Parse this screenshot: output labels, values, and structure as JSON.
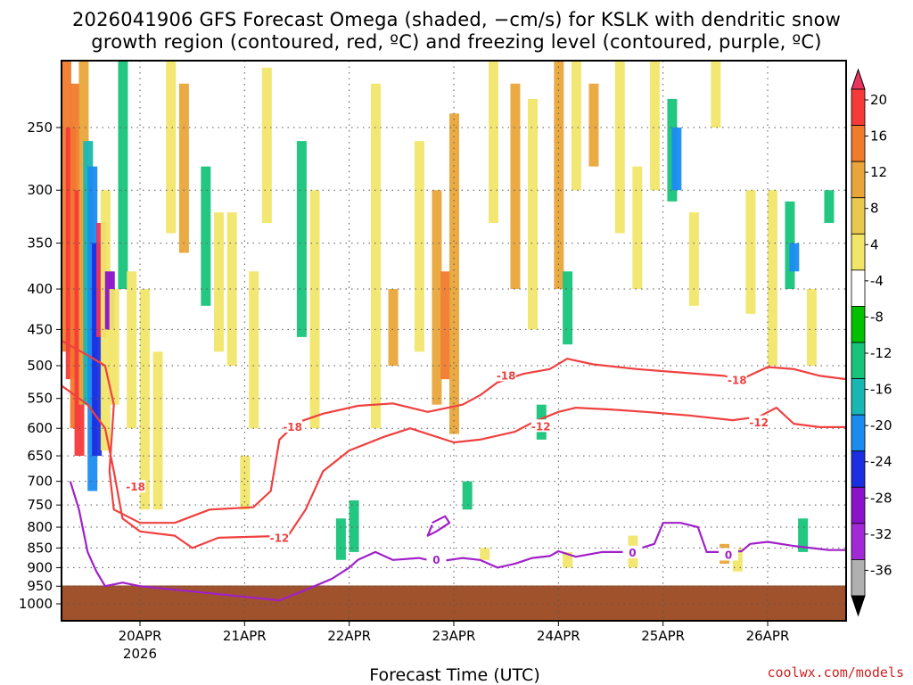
{
  "title_line1": "2026041906 GFS Forecast Omega (shaded, −cm/s) for KSLK with dendritic snow",
  "title_line2": "growth region (contoured, red, ºC) and freezing level (contoured, purple, ºC)",
  "credit": "coolwx.com/models",
  "chart_data": {
    "type": "heatmap",
    "title": "2026041906 GFS Forecast Omega (shaded, −cm/s) for KSLK with dendritic snow growth region (contoured, red, ºC) and freezing level (contoured, purple, ºC)",
    "xlabel": "Forecast Time (UTC)",
    "ylabel": "",
    "y_scale": "log-pressure (hPa, inverted)",
    "y_ticks": [
      250,
      300,
      350,
      400,
      450,
      500,
      550,
      600,
      650,
      700,
      750,
      800,
      850,
      900,
      950,
      1000
    ],
    "y_range_hpa": [
      200,
      1050
    ],
    "x_ticks": [
      {
        "label": "20APR",
        "sublabel": "2026",
        "hour": 18
      },
      {
        "label": "21APR",
        "sublabel": "",
        "hour": 42
      },
      {
        "label": "22APR",
        "sublabel": "",
        "hour": 66
      },
      {
        "label": "23APR",
        "sublabel": "",
        "hour": 90
      },
      {
        "label": "24APR",
        "sublabel": "",
        "hour": 114
      },
      {
        "label": "25APR",
        "sublabel": "",
        "hour": 138
      },
      {
        "label": "26APR",
        "sublabel": "",
        "hour": 162
      }
    ],
    "x_range_hours": [
      0,
      180
    ],
    "grid": true,
    "colorbar": {
      "labels": [
        "20",
        "16",
        "12",
        "8",
        "4",
        "-4",
        "-8",
        "-12",
        "-16",
        "-20",
        "-24",
        "-28",
        "-32",
        "-36"
      ],
      "colors": [
        "#e8335f",
        "#f53a3a",
        "#f07b2c",
        "#e9a53a",
        "#e8c84e",
        "#f1e66a",
        "#ffffff",
        "#00c000",
        "#18c47a",
        "#19b7b3",
        "#1a8cf0",
        "#1b2ee0",
        "#8a12c9",
        "#a12ad6",
        "#b0b0b0",
        "#000000"
      ]
    },
    "shading_cells": [
      {
        "h": 1,
        "p1": 200,
        "p2": 480,
        "v": 12
      },
      {
        "h": 2,
        "p1": 250,
        "p2": 520,
        "v": 16
      },
      {
        "h": 3,
        "p1": 220,
        "p2": 600,
        "v": 12
      },
      {
        "h": 4,
        "p1": 300,
        "p2": 650,
        "v": 16
      },
      {
        "h": 5,
        "p1": 200,
        "p2": 560,
        "v": 8
      },
      {
        "h": 6,
        "p1": 260,
        "p2": 560,
        "v": -12
      },
      {
        "h": 7,
        "p1": 280,
        "p2": 720,
        "v": -16
      },
      {
        "h": 8,
        "p1": 350,
        "p2": 650,
        "v": -20
      },
      {
        "h": 9,
        "p1": 330,
        "p2": 460,
        "v": 20
      },
      {
        "h": 10,
        "p1": 300,
        "p2": 640,
        "v": 4
      },
      {
        "h": 11,
        "p1": 380,
        "p2": 450,
        "v": -24
      },
      {
        "h": 12,
        "p1": 400,
        "p2": 560,
        "v": 4
      },
      {
        "h": 14,
        "p1": 200,
        "p2": 400,
        "v": -8
      },
      {
        "h": 16,
        "p1": 380,
        "p2": 600,
        "v": 4
      },
      {
        "h": 19,
        "p1": 400,
        "p2": 760,
        "v": 4
      },
      {
        "h": 22,
        "p1": 480,
        "p2": 760,
        "v": 4
      },
      {
        "h": 25,
        "p1": 200,
        "p2": 340,
        "v": 4
      },
      {
        "h": 28,
        "p1": 220,
        "p2": 360,
        "v": 8
      },
      {
        "h": 33,
        "p1": 280,
        "p2": 420,
        "v": -8
      },
      {
        "h": 36,
        "p1": 320,
        "p2": 480,
        "v": 4
      },
      {
        "h": 39,
        "p1": 320,
        "p2": 500,
        "v": 4
      },
      {
        "h": 42,
        "p1": 650,
        "p2": 760,
        "v": 4
      },
      {
        "h": 44,
        "p1": 380,
        "p2": 600,
        "v": 4
      },
      {
        "h": 47,
        "p1": 210,
        "p2": 330,
        "v": 4
      },
      {
        "h": 55,
        "p1": 260,
        "p2": 460,
        "v": -8
      },
      {
        "h": 58,
        "p1": 300,
        "p2": 600,
        "v": 4
      },
      {
        "h": 64,
        "p1": 780,
        "p2": 880,
        "v": -8
      },
      {
        "h": 67,
        "p1": 740,
        "p2": 860,
        "v": -8
      },
      {
        "h": 72,
        "p1": 220,
        "p2": 600,
        "v": 4
      },
      {
        "h": 76,
        "p1": 400,
        "p2": 500,
        "v": 8
      },
      {
        "h": 82,
        "p1": 260,
        "p2": 480,
        "v": 4
      },
      {
        "h": 86,
        "p1": 300,
        "p2": 560,
        "v": 8
      },
      {
        "h": 88,
        "p1": 380,
        "p2": 520,
        "v": 12
      },
      {
        "h": 90,
        "p1": 240,
        "p2": 610,
        "v": 8
      },
      {
        "h": 93,
        "p1": 700,
        "p2": 760,
        "v": -8
      },
      {
        "h": 99,
        "p1": 200,
        "p2": 330,
        "v": 4
      },
      {
        "h": 104,
        "p1": 220,
        "p2": 400,
        "v": 8
      },
      {
        "h": 108,
        "p1": 230,
        "p2": 450,
        "v": 4
      },
      {
        "h": 110,
        "p1": 560,
        "p2": 620,
        "v": -8
      },
      {
        "h": 114,
        "p1": 200,
        "p2": 400,
        "v": 8
      },
      {
        "h": 116,
        "p1": 380,
        "p2": 470,
        "v": -8
      },
      {
        "h": 118,
        "p1": 200,
        "p2": 300,
        "v": 4
      },
      {
        "h": 122,
        "p1": 220,
        "p2": 280,
        "v": 8
      },
      {
        "h": 128,
        "p1": 200,
        "p2": 340,
        "v": 4
      },
      {
        "h": 132,
        "p1": 280,
        "p2": 400,
        "v": 4
      },
      {
        "h": 136,
        "p1": 200,
        "p2": 300,
        "v": 4
      },
      {
        "h": 140,
        "p1": 230,
        "p2": 310,
        "v": -8
      },
      {
        "h": 141,
        "p1": 250,
        "p2": 300,
        "v": -16
      },
      {
        "h": 145,
        "p1": 320,
        "p2": 420,
        "v": 4
      },
      {
        "h": 150,
        "p1": 200,
        "p2": 250,
        "v": 4
      },
      {
        "h": 152,
        "p1": 840,
        "p2": 890,
        "v": 8
      },
      {
        "h": 158,
        "p1": 300,
        "p2": 430,
        "v": 4
      },
      {
        "h": 163,
        "p1": 300,
        "p2": 500,
        "v": 4
      },
      {
        "h": 167,
        "p1": 310,
        "p2": 400,
        "v": -8
      },
      {
        "h": 168,
        "p1": 350,
        "p2": 380,
        "v": -16
      },
      {
        "h": 170,
        "p1": 780,
        "p2": 860,
        "v": -8
      },
      {
        "h": 172,
        "p1": 400,
        "p2": 500,
        "v": 4
      },
      {
        "h": 176,
        "p1": 300,
        "p2": 330,
        "v": -8
      },
      {
        "h": 155,
        "p1": 850,
        "p2": 910,
        "v": 4
      },
      {
        "h": 131,
        "p1": 820,
        "p2": 900,
        "v": 4
      },
      {
        "h": 116,
        "p1": 860,
        "p2": 900,
        "v": 4
      },
      {
        "h": 97,
        "p1": 850,
        "p2": 880,
        "v": 4
      }
    ],
    "contours_red": [
      {
        "label": "-18",
        "points": [
          [
            0,
            465
          ],
          [
            6,
            485
          ],
          [
            10,
            500
          ],
          [
            12,
            560
          ],
          [
            11,
            680
          ],
          [
            12,
            760
          ],
          [
            18,
            790
          ],
          [
            26,
            790
          ],
          [
            34,
            760
          ],
          [
            44,
            755
          ],
          [
            48,
            720
          ],
          [
            50,
            620
          ],
          [
            54,
            590
          ],
          [
            60,
            575
          ],
          [
            68,
            562
          ],
          [
            76,
            558
          ],
          [
            84,
            572
          ],
          [
            92,
            560
          ],
          [
            96,
            545
          ],
          [
            100,
            525
          ],
          [
            106,
            512
          ],
          [
            112,
            505
          ],
          [
            116,
            490
          ],
          [
            122,
            498
          ],
          [
            132,
            505
          ],
          [
            142,
            510
          ],
          [
            152,
            515
          ],
          [
            156,
            520
          ],
          [
            162,
            502
          ],
          [
            168,
            505
          ],
          [
            174,
            515
          ],
          [
            180,
            520
          ]
        ],
        "labels_at": [
          [
            53,
            598
          ],
          [
            17,
            712
          ],
          [
            102,
            515
          ],
          [
            155,
            522
          ]
        ]
      },
      {
        "label": "-12",
        "points": [
          [
            0,
            530
          ],
          [
            6,
            560
          ],
          [
            10,
            600
          ],
          [
            12,
            680
          ],
          [
            14,
            780
          ],
          [
            18,
            810
          ],
          [
            26,
            820
          ],
          [
            30,
            850
          ],
          [
            36,
            825
          ],
          [
            46,
            822
          ],
          [
            52,
            820
          ],
          [
            56,
            760
          ],
          [
            60,
            680
          ],
          [
            66,
            640
          ],
          [
            74,
            615
          ],
          [
            80,
            600
          ],
          [
            84,
            610
          ],
          [
            90,
            625
          ],
          [
            96,
            620
          ],
          [
            104,
            606
          ],
          [
            108,
            590
          ],
          [
            114,
            572
          ],
          [
            118,
            565
          ],
          [
            126,
            568
          ],
          [
            134,
            572
          ],
          [
            144,
            578
          ],
          [
            154,
            586
          ],
          [
            160,
            580
          ],
          [
            164,
            565
          ],
          [
            168,
            592
          ],
          [
            174,
            598
          ],
          [
            180,
            598
          ]
        ],
        "labels_at": [
          [
            50,
            826
          ],
          [
            110,
            597
          ],
          [
            160,
            590
          ]
        ]
      }
    ],
    "contours_purple": [
      {
        "label": "0",
        "points": [
          [
            2,
            700
          ],
          [
            4,
            760
          ],
          [
            6,
            860
          ],
          [
            8,
            910
          ],
          [
            10,
            950
          ],
          [
            14,
            940
          ],
          [
            18,
            950
          ],
          [
            50,
            990
          ],
          [
            56,
            960
          ],
          [
            62,
            930
          ],
          [
            66,
            900
          ],
          [
            68,
            880
          ],
          [
            72,
            860
          ],
          [
            76,
            880
          ],
          [
            82,
            875
          ],
          [
            86,
            885
          ],
          [
            92,
            875
          ],
          [
            96,
            880
          ],
          [
            100,
            900
          ],
          [
            104,
            890
          ],
          [
            108,
            875
          ],
          [
            112,
            870
          ],
          [
            114,
            858
          ],
          [
            118,
            872
          ],
          [
            124,
            860
          ],
          [
            130,
            860
          ],
          [
            136,
            840
          ],
          [
            138,
            790
          ],
          [
            142,
            790
          ],
          [
            146,
            800
          ],
          [
            148,
            860
          ],
          [
            152,
            860
          ],
          [
            156,
            858
          ],
          [
            158,
            840
          ],
          [
            162,
            835
          ],
          [
            168,
            845
          ],
          [
            172,
            850
          ],
          [
            176,
            855
          ],
          [
            180,
            855
          ]
        ],
        "labels_at": [
          [
            86,
            880
          ],
          [
            131,
            862
          ],
          [
            153,
            868
          ]
        ]
      },
      {
        "label": "",
        "points": [
          [
            85,
            790
          ],
          [
            88,
            775
          ],
          [
            89,
            790
          ],
          [
            86,
            810
          ],
          [
            84,
            820
          ],
          [
            85,
            795
          ]
        ],
        "labels_at": []
      }
    ],
    "ground": {
      "from_hpa": 948,
      "to_hpa": 1050,
      "color": "#a0522d"
    }
  }
}
